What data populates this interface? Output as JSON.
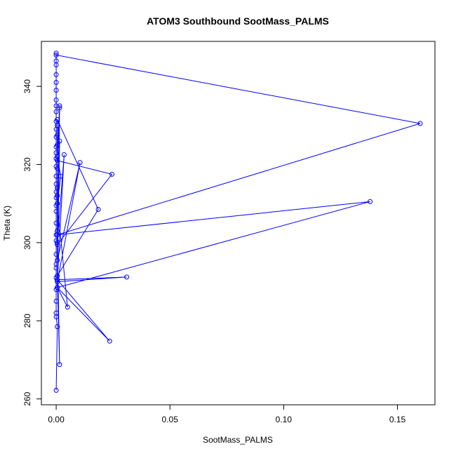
{
  "chart_data": {
    "type": "line",
    "title": "ATOM3 Southbound SootMass_PALMS",
    "xlabel": "SootMass_PALMS",
    "ylabel": "Theta (K)",
    "xlim": [
      -0.0065,
      0.1665
    ],
    "ylim": [
      258.5,
      351.5
    ],
    "x_ticks": [
      0.0,
      0.05,
      0.1,
      0.15
    ],
    "x_tick_labels": [
      "0.00",
      "0.05",
      "0.10",
      "0.15"
    ],
    "y_ticks": [
      260,
      280,
      300,
      320,
      340
    ],
    "y_tick_labels": [
      "260",
      "280",
      "300",
      "320",
      "340"
    ],
    "grid": false,
    "legend": "none",
    "marker": "open-circle",
    "colors": {
      "series": "#0000ff",
      "axes": "#000000"
    },
    "series": [
      {
        "points": [
          [
            0.0,
            262.2
          ],
          [
            0.0005,
            278.5
          ],
          [
            0.0,
            281.0
          ],
          [
            0.0,
            282.0
          ],
          [
            0.0,
            285.0
          ],
          [
            0.0,
            288.0
          ],
          [
            0.0,
            291.0
          ],
          [
            0.0,
            293.5
          ],
          [
            0.0,
            294.5
          ],
          [
            0.0,
            297.0
          ],
          [
            0.0,
            300.5
          ],
          [
            0.0,
            302.0
          ],
          [
            0.0,
            305.0
          ],
          [
            0.0,
            308.0
          ],
          [
            0.0,
            309.5
          ],
          [
            0.0,
            311.5
          ],
          [
            0.0,
            313.0
          ],
          [
            0.0,
            315.0
          ],
          [
            0.0,
            317.0
          ],
          [
            0.0,
            319.5
          ],
          [
            0.0,
            321.5
          ],
          [
            0.0,
            323.0
          ],
          [
            0.0,
            324.5
          ],
          [
            0.0,
            327.0
          ],
          [
            0.0,
            329.0
          ],
          [
            0.0,
            331.0
          ],
          [
            0.0,
            333.5
          ],
          [
            0.0,
            335.0
          ],
          [
            0.0,
            336.5
          ],
          [
            0.0,
            339.0
          ],
          [
            0.0,
            341.0
          ],
          [
            0.0,
            343.0
          ],
          [
            0.0,
            345.5
          ],
          [
            0.0,
            346.5
          ],
          [
            0.0,
            348.5
          ],
          [
            0.0,
            348.0
          ],
          [
            0.16,
            330.5
          ],
          [
            0.0005,
            302.0
          ],
          [
            0.138,
            310.5
          ],
          [
            0.0005,
            288.5
          ],
          [
            0.0015,
            334.5
          ],
          [
            0.0005,
            321.0
          ],
          [
            0.0245,
            317.5
          ],
          [
            0.0005,
            299.5
          ],
          [
            0.0015,
            326.0
          ],
          [
            0.0005,
            291.5
          ],
          [
            0.0185,
            308.5
          ],
          [
            0.0005,
            331.5
          ],
          [
            0.0005,
            295.5
          ],
          [
            0.0105,
            320.5
          ],
          [
            0.0005,
            290.0
          ],
          [
            0.031,
            291.2
          ],
          [
            0.0005,
            290.5
          ],
          [
            0.0015,
            268.8
          ],
          [
            0.0005,
            300.0
          ],
          [
            0.0035,
            322.5
          ],
          [
            0.0005,
            290.5
          ],
          [
            0.0235,
            274.8
          ],
          [
            0.0005,
            288.5
          ],
          [
            0.005,
            283.5
          ],
          [
            0.0005,
            310.0
          ],
          [
            0.002,
            317.0
          ],
          [
            0.0005,
            322.0
          ],
          [
            0.0015,
            335.0
          ],
          [
            0.0005,
            303.0
          ],
          [
            0.0005,
            312.0
          ],
          [
            0.0005,
            314.0
          ],
          [
            0.0005,
            327.5
          ],
          [
            0.0005,
            325.0
          ],
          [
            0.0005,
            330.0
          ],
          [
            0.0005,
            319.0
          ]
        ]
      }
    ]
  }
}
